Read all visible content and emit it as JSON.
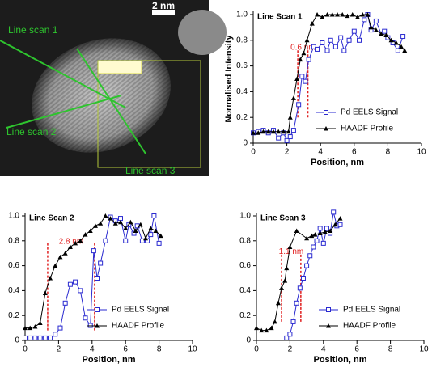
{
  "micrograph": {
    "scale_label": "2 nm",
    "labels": [
      "Line scan 1",
      "Line scan 2",
      "Line scan 3"
    ]
  },
  "chart_data": [
    {
      "type": "line",
      "title": "Line Scan 1",
      "x_label": "Position, nm",
      "y_label": "Normalised Intensity",
      "xlim": [
        0,
        10
      ],
      "xticks": [
        0,
        2,
        4,
        6,
        8,
        10
      ],
      "ylim": [
        0,
        1
      ],
      "yticks": [
        0,
        0.2,
        0.4,
        0.6,
        0.8,
        {
          "value": 1,
          "label": "1.0"
        }
      ],
      "legend": "lower right",
      "annotation": {
        "text": "0.6 nm",
        "x": [
          2.65,
          3.25
        ],
        "y": [
          0.2,
          0.73
        ]
      },
      "series": [
        {
          "name": "Pd EELS Signal",
          "color": "#2a2ad0",
          "marker": "square",
          "x": [
            0,
            0.3,
            0.6,
            0.9,
            1.2,
            1.5,
            1.8,
            2.0,
            2.2,
            2.4,
            2.7,
            2.9,
            3.1,
            3.3,
            3.6,
            3.8,
            4.1,
            4.4,
            4.6,
            4.9,
            5.2,
            5.4,
            5.7,
            6.0,
            6.3,
            6.6,
            6.8,
            7.0,
            7.3,
            7.6,
            7.8,
            8.0,
            8.3,
            8.6,
            8.9
          ],
          "values": [
            0.08,
            0.09,
            0.1,
            0.08,
            0.1,
            0.04,
            0.08,
            0.02,
            0.05,
            0.1,
            0.3,
            0.52,
            0.48,
            0.65,
            0.75,
            0.73,
            0.78,
            0.72,
            0.8,
            0.75,
            0.82,
            0.72,
            0.8,
            0.87,
            0.8,
            0.96,
            1.0,
            0.88,
            0.95,
            0.85,
            0.87,
            0.82,
            0.78,
            0.72,
            0.83
          ]
        },
        {
          "name": "HAADF Profile",
          "color": "#000000",
          "marker": "triangle",
          "x": [
            0,
            0.3,
            0.6,
            0.9,
            1.2,
            1.5,
            1.8,
            2.1,
            2.2,
            2.4,
            2.6,
            2.8,
            3.0,
            3.2,
            3.5,
            3.8,
            4.1,
            4.4,
            4.7,
            5.0,
            5.3,
            5.6,
            5.9,
            6.2,
            6.5,
            6.8,
            7.0,
            7.3,
            7.6,
            7.9,
            8.2,
            8.5,
            8.8,
            9.0
          ],
          "values": [
            0.08,
            0.08,
            0.09,
            0.09,
            0.09,
            0.09,
            0.09,
            0.09,
            0.2,
            0.35,
            0.5,
            0.65,
            0.7,
            0.8,
            0.93,
            1.0,
            0.98,
            1.0,
            1.0,
            1.0,
            1.0,
            0.99,
            1.0,
            0.98,
            1.0,
            1.0,
            0.9,
            0.88,
            0.85,
            0.84,
            0.8,
            0.78,
            0.75,
            0.72
          ]
        }
      ]
    },
    {
      "type": "line",
      "title": "Line Scan 2",
      "x_label": "Position, nm",
      "xlim": [
        0,
        10
      ],
      "xticks": [
        0,
        2,
        4,
        6,
        8,
        10
      ],
      "ylim": [
        0,
        1
      ],
      "yticks": [
        0,
        0.2,
        0.4,
        0.6,
        0.8,
        {
          "value": 1,
          "label": "1.0"
        }
      ],
      "legend": "lower right",
      "annotation": {
        "text": "2.8 nm",
        "x": [
          1.35,
          4.15
        ],
        "y": [
          0.08,
          0.78
        ]
      },
      "series": [
        {
          "name": "Pd EELS Signal",
          "color": "#2a2ad0",
          "marker": "square",
          "x": [
            0,
            0.3,
            0.6,
            0.9,
            1.2,
            1.5,
            1.8,
            2.1,
            2.4,
            2.7,
            3.0,
            3.3,
            3.6,
            3.9,
            4.1,
            4.3,
            4.5,
            4.8,
            5.1,
            5.4,
            5.7,
            6.0,
            6.2,
            6.5,
            6.7,
            7.0,
            7.3,
            7.5,
            7.7,
            8.0
          ],
          "values": [
            0.02,
            0.02,
            0.02,
            0.02,
            0.02,
            0.02,
            0.05,
            0.1,
            0.3,
            0.45,
            0.47,
            0.4,
            0.18,
            0.12,
            0.72,
            0.5,
            0.62,
            0.8,
            0.99,
            0.96,
            0.98,
            0.8,
            0.93,
            0.86,
            0.92,
            0.8,
            0.8,
            0.85,
            1.0,
            0.78
          ]
        },
        {
          "name": "HAADF Profile",
          "color": "#000000",
          "marker": "triangle",
          "x": [
            0,
            0.3,
            0.6,
            0.9,
            1.2,
            1.5,
            1.8,
            2.1,
            2.4,
            2.7,
            3.0,
            3.3,
            3.6,
            3.9,
            4.2,
            4.5,
            4.8,
            5.1,
            5.4,
            5.7,
            6.0,
            6.3,
            6.6,
            6.9,
            7.2,
            7.5,
            7.8,
            8.1
          ],
          "values": [
            0.1,
            0.1,
            0.11,
            0.14,
            0.38,
            0.5,
            0.6,
            0.67,
            0.7,
            0.75,
            0.78,
            0.8,
            0.85,
            0.88,
            0.92,
            0.94,
            1.0,
            0.98,
            0.94,
            0.95,
            0.9,
            0.95,
            0.88,
            0.93,
            0.82,
            0.9,
            0.88,
            0.84
          ]
        }
      ]
    },
    {
      "type": "line",
      "title": "Line Scan 3",
      "x_label": "Position, nm",
      "xlim": [
        0,
        10
      ],
      "xticks": [
        0,
        2,
        4,
        6,
        8,
        10
      ],
      "ylim": [
        0,
        1
      ],
      "yticks": [
        0,
        0.2,
        0.4,
        0.6,
        0.8,
        {
          "value": 1,
          "label": "1.0"
        }
      ],
      "legend": "lower right",
      "annotation": {
        "text": "1.1 nm",
        "x": [
          1.5,
          2.65
        ],
        "y": [
          0.15,
          0.7
        ]
      },
      "series": [
        {
          "name": "Pd EELS Signal",
          "color": "#2a2ad0",
          "marker": "square",
          "x": [
            1.8,
            2.0,
            2.2,
            2.4,
            2.6,
            2.8,
            3.0,
            3.2,
            3.4,
            3.6,
            3.8,
            4.0,
            4.2,
            4.4,
            4.6,
            4.8,
            5.0
          ],
          "values": [
            0.02,
            0.05,
            0.15,
            0.3,
            0.42,
            0.5,
            0.6,
            0.68,
            0.75,
            0.8,
            0.9,
            0.78,
            0.9,
            0.86,
            1.03,
            0.92,
            0.93
          ]
        },
        {
          "name": "HAADF Profile",
          "color": "#000000",
          "marker": "triangle",
          "x": [
            0,
            0.3,
            0.6,
            0.9,
            1.1,
            1.3,
            1.5,
            1.7,
            1.8,
            2.0,
            2.4,
            3.0,
            3.3,
            3.5,
            3.8,
            4.1,
            4.4,
            4.7,
            5.0
          ],
          "values": [
            0.1,
            0.08,
            0.08,
            0.1,
            0.15,
            0.3,
            0.42,
            0.48,
            0.58,
            0.75,
            0.88,
            0.82,
            0.84,
            0.85,
            0.86,
            0.87,
            0.88,
            0.93,
            0.98
          ]
        }
      ]
    }
  ]
}
